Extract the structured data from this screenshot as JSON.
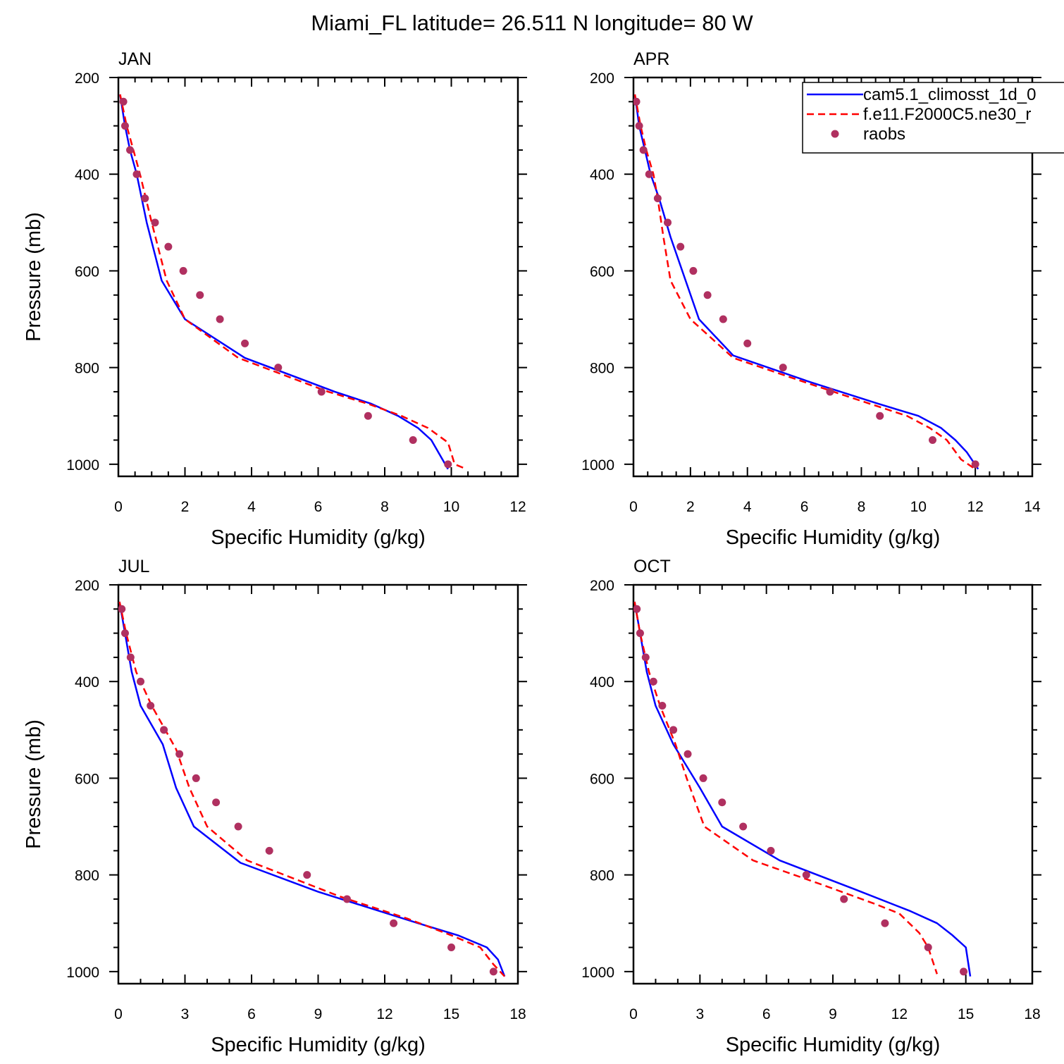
{
  "figure": {
    "title": "Miami_FL  latitude= 26.511 N longitude= 80 W"
  },
  "colors": {
    "model1": "#0000ff",
    "model2": "#ff0000",
    "obs": "#b03060",
    "axes": "#000000"
  },
  "legend": {
    "entries": [
      {
        "label": "cam5.1_climosst_1d_0",
        "style": "solid",
        "color": "#0000ff"
      },
      {
        "label": "f.e11.F2000C5.ne30_r",
        "style": "dashed",
        "color": "#ff0000"
      },
      {
        "label": "raobs",
        "style": "marker",
        "color": "#b03060"
      }
    ]
  },
  "chart_data": [
    {
      "type": "line",
      "panel": "JAN",
      "title": "JAN",
      "xlabel": "Specific Humidity (g/kg)",
      "ylabel": "Pressure (mb)",
      "xlim": [
        0,
        12
      ],
      "xticks": [
        0,
        2,
        4,
        6,
        8,
        10,
        12
      ],
      "ylim": [
        1025,
        200
      ],
      "yticks": [
        200,
        400,
        600,
        800,
        1000
      ],
      "series": [
        {
          "name": "cam5.1_climosst_1d_0",
          "style": "solid",
          "color": "#0000ff",
          "x": [
            0.05,
            0.2,
            0.35,
            0.55,
            0.85,
            1.3,
            2.0,
            3.8,
            6.5,
            7.6,
            8.4,
            9.0,
            9.4,
            9.9
          ],
          "y": [
            235,
            300,
            350,
            400,
            500,
            620,
            700,
            780,
            850,
            875,
            900,
            925,
            950,
            1010
          ]
        },
        {
          "name": "f.e11.F2000C5.ne30_r",
          "style": "dashed",
          "color": "#ff0000",
          "x": [
            0.05,
            0.25,
            0.45,
            0.65,
            1.0,
            1.45,
            2.0,
            3.6,
            6.3,
            7.5,
            8.5,
            9.3,
            9.9,
            10.1,
            10.45
          ],
          "y": [
            235,
            300,
            350,
            400,
            500,
            620,
            700,
            780,
            850,
            875,
            900,
            925,
            955,
            1000,
            1010
          ]
        },
        {
          "name": "raobs",
          "style": "marker",
          "color": "#b03060",
          "x": [
            0.15,
            0.2,
            0.35,
            0.55,
            0.8,
            1.1,
            1.5,
            1.95,
            2.45,
            3.05,
            3.8,
            4.8,
            6.1,
            7.5,
            8.85,
            9.9
          ],
          "y": [
            250,
            300,
            350,
            400,
            450,
            500,
            550,
            600,
            650,
            700,
            750,
            800,
            850,
            900,
            950,
            1000
          ]
        }
      ]
    },
    {
      "type": "line",
      "panel": "APR",
      "title": "APR",
      "xlabel": "Specific Humidity (g/kg)",
      "ylabel": "",
      "xlim": [
        0,
        14
      ],
      "xticks": [
        0,
        2,
        4,
        6,
        8,
        10,
        12,
        14
      ],
      "ylim": [
        1025,
        200
      ],
      "yticks": [
        200,
        400,
        600,
        800,
        1000
      ],
      "series": [
        {
          "name": "cam5.1_climosst_1d_0",
          "style": "solid",
          "color": "#0000ff",
          "x": [
            0.05,
            0.2,
            0.4,
            0.6,
            0.9,
            1.3,
            2.3,
            3.5,
            6.2,
            8.6,
            10.0,
            10.8,
            11.3,
            11.7,
            12.1
          ],
          "y": [
            235,
            300,
            350,
            400,
            450,
            530,
            700,
            775,
            830,
            875,
            900,
            925,
            950,
            975,
            1010
          ]
        },
        {
          "name": "f.e11.F2000C5.ne30_r",
          "style": "dashed",
          "color": "#ff0000",
          "x": [
            0.05,
            0.25,
            0.45,
            0.7,
            0.85,
            1.05,
            1.3,
            2.0,
            3.5,
            6.0,
            8.3,
            9.6,
            10.4,
            11.0,
            11.5,
            12.0
          ],
          "y": [
            235,
            300,
            350,
            400,
            450,
            530,
            620,
            700,
            780,
            830,
            875,
            900,
            925,
            950,
            990,
            1010
          ]
        },
        {
          "name": "raobs",
          "style": "marker",
          "color": "#b03060",
          "x": [
            0.1,
            0.2,
            0.35,
            0.55,
            0.85,
            1.2,
            1.65,
            2.1,
            2.6,
            3.15,
            4.0,
            5.25,
            6.9,
            8.65,
            10.5,
            12.0
          ],
          "y": [
            250,
            300,
            350,
            400,
            450,
            500,
            550,
            600,
            650,
            700,
            750,
            800,
            850,
            900,
            950,
            1000
          ]
        }
      ]
    },
    {
      "type": "line",
      "panel": "JUL",
      "title": "JUL",
      "xlabel": "Specific Humidity (g/kg)",
      "ylabel": "Pressure (mb)",
      "xlim": [
        0,
        18
      ],
      "xticks": [
        0,
        3,
        6,
        9,
        12,
        15,
        18
      ],
      "ylim": [
        1025,
        200
      ],
      "yticks": [
        200,
        400,
        600,
        800,
        1000
      ],
      "series": [
        {
          "name": "cam5.1_climosst_1d_0",
          "style": "solid",
          "color": "#0000ff",
          "x": [
            0.05,
            0.3,
            0.6,
            1.0,
            2.0,
            2.6,
            3.4,
            5.5,
            9.0,
            13.5,
            15.3,
            16.6,
            17.1,
            17.4
          ],
          "y": [
            235,
            300,
            380,
            450,
            530,
            620,
            700,
            775,
            835,
            900,
            925,
            950,
            975,
            1010
          ]
        },
        {
          "name": "f.e11.F2000C5.ne30_r",
          "style": "dashed",
          "color": "#ff0000",
          "x": [
            0.05,
            0.35,
            0.8,
            1.5,
            2.6,
            3.2,
            4.0,
            5.8,
            10.0,
            13.0,
            15.0,
            16.3,
            16.9,
            17.4
          ],
          "y": [
            235,
            300,
            380,
            450,
            540,
            620,
            700,
            770,
            845,
            890,
            925,
            950,
            985,
            1010
          ]
        },
        {
          "name": "raobs",
          "style": "marker",
          "color": "#b03060",
          "x": [
            0.15,
            0.3,
            0.55,
            1.0,
            1.45,
            2.05,
            2.75,
            3.5,
            4.4,
            5.4,
            6.8,
            8.5,
            10.3,
            12.4,
            15.0,
            16.9
          ],
          "y": [
            250,
            300,
            350,
            400,
            450,
            500,
            550,
            600,
            650,
            700,
            750,
            800,
            850,
            900,
            950,
            1000
          ]
        }
      ]
    },
    {
      "type": "line",
      "panel": "OCT",
      "title": "OCT",
      "xlabel": "Specific Humidity (g/kg)",
      "ylabel": "",
      "xlim": [
        0,
        18
      ],
      "xticks": [
        0,
        3,
        6,
        9,
        12,
        15,
        18
      ],
      "ylim": [
        1025,
        200
      ],
      "yticks": [
        200,
        400,
        600,
        800,
        1000
      ],
      "series": [
        {
          "name": "cam5.1_climosst_1d_0",
          "style": "solid",
          "color": "#0000ff",
          "x": [
            0.05,
            0.3,
            0.6,
            1.0,
            1.8,
            3.0,
            4.0,
            6.6,
            10.0,
            12.5,
            13.7,
            14.4,
            15.0,
            15.2
          ],
          "y": [
            235,
            300,
            380,
            450,
            530,
            620,
            700,
            770,
            830,
            875,
            900,
            925,
            950,
            1010
          ]
        },
        {
          "name": "f.e11.F2000C5.ne30_r",
          "style": "dashed",
          "color": "#ff0000",
          "x": [
            0.05,
            0.3,
            0.7,
            1.2,
            1.9,
            2.4,
            3.2,
            5.4,
            8.5,
            10.9,
            12.0,
            12.9,
            13.3,
            13.7
          ],
          "y": [
            235,
            300,
            380,
            450,
            530,
            600,
            700,
            770,
            820,
            860,
            880,
            920,
            950,
            1005
          ]
        },
        {
          "name": "raobs",
          "style": "marker",
          "color": "#b03060",
          "x": [
            0.15,
            0.3,
            0.55,
            0.9,
            1.3,
            1.8,
            2.45,
            3.15,
            4.0,
            4.95,
            6.2,
            7.8,
            9.5,
            11.35,
            13.3,
            14.9
          ],
          "y": [
            250,
            300,
            350,
            400,
            450,
            500,
            550,
            600,
            650,
            700,
            750,
            800,
            850,
            900,
            950,
            1000
          ]
        }
      ]
    }
  ]
}
